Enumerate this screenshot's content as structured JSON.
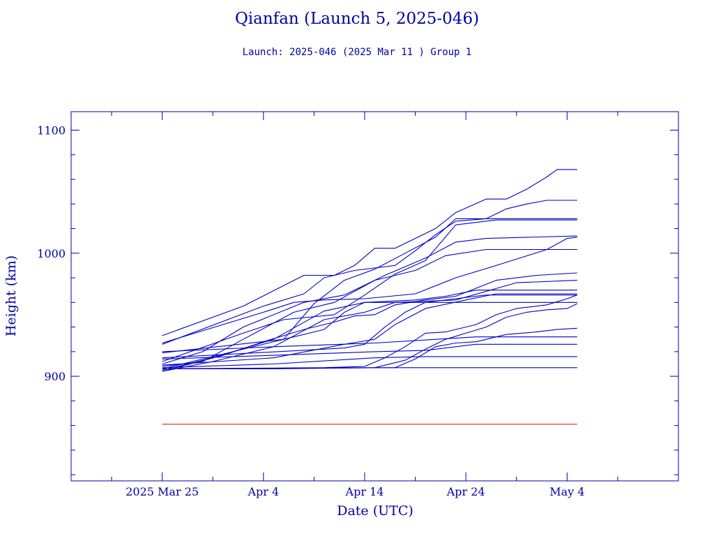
{
  "chart_data": {
    "type": "line",
    "title": "Qianfan (Launch 5, 2025-046)",
    "subtitle": "Launch: 2025-046  (2025 Mar 11 )  Group 1",
    "xlabel": "Date (UTC)",
    "ylabel": "Height (km)",
    "x_unit": "date",
    "xlim": [
      "2025-03-16",
      "2025-05-15"
    ],
    "ylim": [
      815,
      1115
    ],
    "x_ticks": [
      {
        "date": "2025-03-25",
        "label": "2025 Mar 25"
      },
      {
        "date": "2025-04-04",
        "label": "Apr  4"
      },
      {
        "date": "2025-04-14",
        "label": "Apr 14"
      },
      {
        "date": "2025-04-24",
        "label": "Apr 24"
      },
      {
        "date": "2025-05-04",
        "label": "May  4"
      }
    ],
    "x_minor_ticks": [
      "2025-03-20",
      "2025-03-30",
      "2025-04-09",
      "2025-04-19",
      "2025-04-29",
      "2025-05-09"
    ],
    "y_ticks": [
      900,
      1000,
      1100
    ],
    "y_minor_step": 20,
    "grid": false,
    "colors": {
      "series": "#0000c8",
      "reference": "#e00000",
      "axes": "#0000a0"
    },
    "reference_line": {
      "y": 861,
      "x": [
        "2025-03-25",
        "2025-05-05"
      ]
    },
    "series": [
      {
        "points": [
          [
            "2025-03-25",
            933
          ],
          [
            "2025-04-02",
            957
          ],
          [
            "2025-04-08",
            982
          ],
          [
            "2025-04-11",
            982
          ],
          [
            "2025-04-13",
            990
          ],
          [
            "2025-04-15",
            1004
          ],
          [
            "2025-04-17",
            1004
          ],
          [
            "2025-04-19",
            1012
          ],
          [
            "2025-04-21",
            1020
          ],
          [
            "2025-04-23",
            1033
          ],
          [
            "2025-04-26",
            1044
          ],
          [
            "2025-04-28",
            1044
          ],
          [
            "2025-04-30",
            1052
          ],
          [
            "2025-05-02",
            1062
          ],
          [
            "2025-05-03",
            1068
          ],
          [
            "2025-05-05",
            1068
          ]
        ]
      },
      {
        "points": [
          [
            "2025-03-25",
            926
          ],
          [
            "2025-04-04",
            957
          ],
          [
            "2025-04-08",
            967
          ],
          [
            "2025-04-10",
            980
          ],
          [
            "2025-04-13",
            986
          ],
          [
            "2025-04-17",
            990
          ],
          [
            "2025-04-19",
            1002
          ],
          [
            "2025-04-21",
            1015
          ],
          [
            "2025-04-23",
            1026
          ],
          [
            "2025-04-26",
            1028
          ],
          [
            "2025-04-28",
            1036
          ],
          [
            "2025-04-30",
            1040
          ],
          [
            "2025-05-02",
            1043
          ],
          [
            "2025-05-05",
            1043
          ]
        ]
      },
      {
        "points": [
          [
            "2025-03-25",
            919
          ],
          [
            "2025-04-06",
            930
          ],
          [
            "2025-04-09",
            959
          ],
          [
            "2025-04-12",
            978
          ],
          [
            "2025-04-15",
            987
          ],
          [
            "2025-04-18",
            1000
          ],
          [
            "2025-04-21",
            1013
          ],
          [
            "2025-04-23",
            1028
          ],
          [
            "2025-04-25",
            1028
          ],
          [
            "2025-05-05",
            1028
          ]
        ]
      },
      {
        "points": [
          [
            "2025-03-25",
            912
          ],
          [
            "2025-04-02",
            935
          ],
          [
            "2025-04-06",
            946
          ],
          [
            "2025-04-11",
            950
          ],
          [
            "2025-04-14",
            966
          ],
          [
            "2025-04-17",
            983
          ],
          [
            "2025-04-20",
            994
          ],
          [
            "2025-04-23",
            1023
          ],
          [
            "2025-04-27",
            1027
          ],
          [
            "2025-05-05",
            1027
          ]
        ]
      },
      {
        "points": [
          [
            "2025-03-25",
            910
          ],
          [
            "2025-03-29",
            920
          ],
          [
            "2025-04-02",
            940
          ],
          [
            "2025-04-08",
            960
          ],
          [
            "2025-04-12",
            966
          ],
          [
            "2025-04-16",
            982
          ],
          [
            "2025-04-20",
            996
          ],
          [
            "2025-04-23",
            1009
          ],
          [
            "2025-04-26",
            1012
          ],
          [
            "2025-05-05",
            1014
          ]
        ]
      },
      {
        "points": [
          [
            "2025-03-25",
            908
          ],
          [
            "2025-03-29",
            912
          ],
          [
            "2025-04-02",
            930
          ],
          [
            "2025-04-07",
            952
          ],
          [
            "2025-04-11",
            960
          ],
          [
            "2025-04-15",
            978
          ],
          [
            "2025-04-19",
            986
          ],
          [
            "2025-04-22",
            998
          ],
          [
            "2025-04-26",
            1003
          ],
          [
            "2025-05-05",
            1003
          ]
        ]
      },
      {
        "points": [
          [
            "2025-03-25",
            927
          ],
          [
            "2025-04-04",
            952
          ],
          [
            "2025-04-07",
            960
          ],
          [
            "2025-04-10",
            962
          ],
          [
            "2025-04-14",
            963
          ],
          [
            "2025-04-19",
            967
          ],
          [
            "2025-04-23",
            980
          ],
          [
            "2025-04-27",
            990
          ],
          [
            "2025-05-02",
            1003
          ],
          [
            "2025-05-04",
            1012
          ],
          [
            "2025-05-05",
            1013
          ]
        ]
      },
      {
        "points": [
          [
            "2025-03-25",
            904
          ],
          [
            "2025-03-31",
            917
          ],
          [
            "2025-04-04",
            928
          ],
          [
            "2025-04-08",
            938
          ],
          [
            "2025-04-11",
            944
          ],
          [
            "2025-04-13",
            949
          ],
          [
            "2025-04-15",
            950
          ],
          [
            "2025-04-17",
            958
          ],
          [
            "2025-04-20",
            962
          ],
          [
            "2025-04-23",
            965
          ],
          [
            "2025-04-27",
            978
          ],
          [
            "2025-05-01",
            982
          ],
          [
            "2025-05-05",
            984
          ]
        ]
      },
      {
        "points": [
          [
            "2025-03-25",
            904
          ],
          [
            "2025-03-30",
            912
          ],
          [
            "2025-04-05",
            924
          ],
          [
            "2025-04-10",
            946
          ],
          [
            "2025-04-14",
            952
          ],
          [
            "2025-04-17",
            960
          ],
          [
            "2025-04-23",
            962
          ],
          [
            "2025-04-29",
            976
          ],
          [
            "2025-05-05",
            978
          ]
        ]
      },
      {
        "points": [
          [
            "2025-03-25",
            905
          ],
          [
            "2025-03-30",
            915
          ],
          [
            "2025-04-05",
            930
          ],
          [
            "2025-04-10",
            953
          ],
          [
            "2025-04-14",
            960
          ],
          [
            "2025-04-19",
            962
          ],
          [
            "2025-04-22",
            965
          ],
          [
            "2025-04-25",
            970
          ],
          [
            "2025-05-05",
            970
          ]
        ]
      },
      {
        "points": [
          [
            "2025-03-25",
            906
          ],
          [
            "2025-03-31",
            918
          ],
          [
            "2025-04-06",
            930
          ],
          [
            "2025-04-10",
            938
          ],
          [
            "2025-04-12",
            952
          ],
          [
            "2025-04-14",
            960
          ],
          [
            "2025-05-05",
            960
          ]
        ]
      },
      {
        "points": [
          [
            "2025-03-25",
            915
          ],
          [
            "2025-04-10",
            922
          ],
          [
            "2025-04-12",
            923
          ],
          [
            "2025-04-14",
            926
          ],
          [
            "2025-04-16",
            940
          ],
          [
            "2025-04-18",
            952
          ],
          [
            "2025-04-20",
            960
          ],
          [
            "2025-04-23",
            963
          ],
          [
            "2025-04-26",
            966
          ],
          [
            "2025-05-05",
            966
          ]
        ]
      },
      {
        "points": [
          [
            "2025-03-25",
            909
          ],
          [
            "2025-04-05",
            915
          ],
          [
            "2025-04-12",
            926
          ],
          [
            "2025-04-15",
            930
          ],
          [
            "2025-04-17",
            942
          ],
          [
            "2025-04-20",
            955
          ],
          [
            "2025-04-24",
            962
          ],
          [
            "2025-04-27",
            967
          ],
          [
            "2025-05-05",
            967
          ]
        ]
      },
      {
        "points": [
          [
            "2025-03-25",
            906
          ],
          [
            "2025-04-10",
            907
          ],
          [
            "2025-04-14",
            908
          ],
          [
            "2025-04-16",
            915
          ],
          [
            "2025-04-18",
            924
          ],
          [
            "2025-04-20",
            935
          ],
          [
            "2025-04-22",
            936
          ],
          [
            "2025-04-25",
            942
          ],
          [
            "2025-04-27",
            950
          ],
          [
            "2025-04-29",
            955
          ],
          [
            "2025-05-02",
            958
          ],
          [
            "2025-05-04",
            963
          ],
          [
            "2025-05-05",
            966
          ]
        ]
      },
      {
        "points": [
          [
            "2025-03-25",
            906
          ],
          [
            "2025-04-15",
            907
          ],
          [
            "2025-04-18",
            913
          ],
          [
            "2025-04-20",
            922
          ],
          [
            "2025-04-22",
            930
          ],
          [
            "2025-04-24",
            935
          ],
          [
            "2025-04-26",
            940
          ],
          [
            "2025-04-28",
            948
          ],
          [
            "2025-04-30",
            952
          ],
          [
            "2025-05-02",
            954
          ],
          [
            "2025-05-04",
            955
          ],
          [
            "2025-05-05",
            959
          ]
        ]
      },
      {
        "points": [
          [
            "2025-03-25",
            906
          ],
          [
            "2025-04-17",
            907
          ],
          [
            "2025-04-19",
            914
          ],
          [
            "2025-04-21",
            924
          ],
          [
            "2025-04-23",
            927
          ],
          [
            "2025-04-25",
            928
          ],
          [
            "2025-04-28",
            934
          ],
          [
            "2025-05-01",
            936
          ],
          [
            "2025-05-03",
            938
          ],
          [
            "2025-05-05",
            939
          ]
        ]
      },
      {
        "points": [
          [
            "2025-03-25",
            920
          ],
          [
            "2025-04-05",
            924
          ],
          [
            "2025-04-15",
            927
          ],
          [
            "2025-04-25",
            932
          ],
          [
            "2025-05-05",
            932
          ]
        ]
      },
      {
        "points": [
          [
            "2025-03-25",
            914
          ],
          [
            "2025-04-05",
            917
          ],
          [
            "2025-04-15",
            920
          ],
          [
            "2025-04-20",
            921
          ],
          [
            "2025-04-25",
            926
          ],
          [
            "2025-04-28",
            926
          ],
          [
            "2025-05-05",
            926
          ]
        ]
      },
      {
        "points": [
          [
            "2025-03-25",
            907
          ],
          [
            "2025-04-05",
            910
          ],
          [
            "2025-04-15",
            915
          ],
          [
            "2025-04-20",
            916
          ],
          [
            "2025-05-05",
            916
          ]
        ]
      },
      {
        "points": [
          [
            "2025-03-25",
            906
          ],
          [
            "2025-04-05",
            906
          ],
          [
            "2025-04-15",
            907
          ],
          [
            "2025-05-05",
            907
          ]
        ]
      }
    ]
  }
}
